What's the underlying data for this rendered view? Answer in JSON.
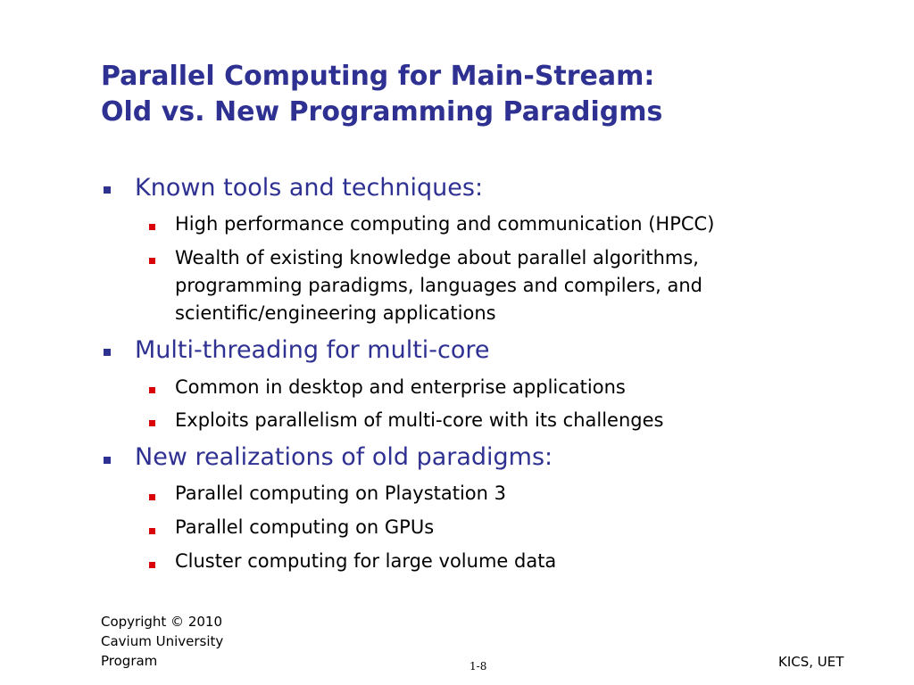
{
  "title": {
    "line1": "Parallel Computing for Main-Stream:",
    "line2": "Old vs. New Programming Paradigms"
  },
  "colors": {
    "title": "#2e3192",
    "level1_text": "#2e3192",
    "level1_bullet": "#2e3192",
    "level2_bullet": "#d9000a"
  },
  "bullets": [
    {
      "text": "Known tools and techniques:",
      "sub": [
        {
          "lines": [
            "High performance computing and communication (HPCC)"
          ]
        },
        {
          "lines": [
            "Wealth of existing knowledge about parallel algorithms,",
            "programming paradigms, languages and compilers, and",
            "scientific/engineering applications"
          ]
        }
      ]
    },
    {
      "text": "Multi-threading for multi-core",
      "sub": [
        {
          "lines": [
            "Common in desktop and enterprise applications"
          ]
        },
        {
          "lines": [
            "Exploits parallelism of multi-core with its challenges"
          ]
        }
      ]
    },
    {
      "text": "New realizations of old paradigms:",
      "sub": [
        {
          "lines": [
            "Parallel computing on Playstation 3"
          ]
        },
        {
          "lines": [
            "Parallel computing on GPUs"
          ]
        },
        {
          "lines": [
            "Cluster computing for large volume data"
          ]
        }
      ]
    }
  ],
  "footer": {
    "copyright_line1": "Copyright © 2010",
    "copyright_line2": "Cavium University",
    "copyright_line3": "Program",
    "page_number": "1-8",
    "org": "KICS, UET"
  }
}
